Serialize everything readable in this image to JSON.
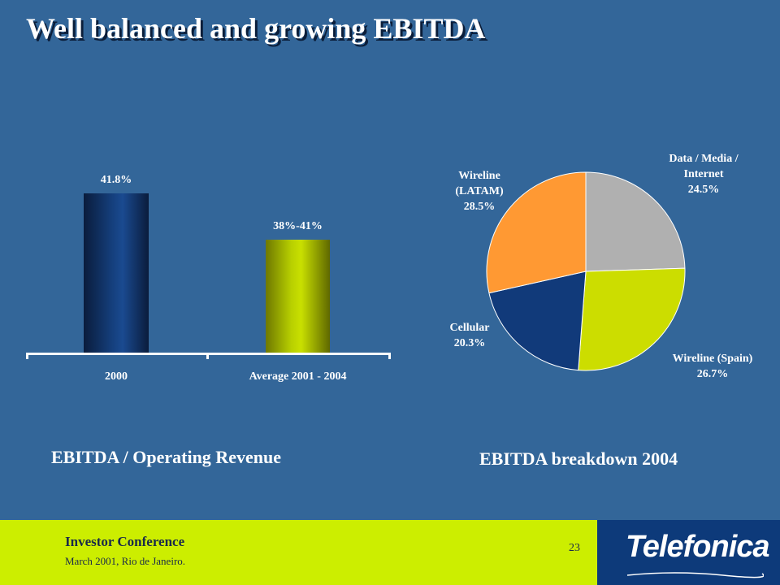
{
  "title": "Well balanced and growing EBITDA",
  "colors": {
    "background": "#336699",
    "footer_band": "#ccee00",
    "logo_panel": "#0d3a7a",
    "wireline_spain": "#ccdd00",
    "cellular": "#113a7a",
    "wireline_latam": "#ff9933",
    "data_media_internet": "#b0b0b0"
  },
  "chart_data": [
    {
      "type": "bar",
      "categories": [
        "2000",
        "Average 2001 - 2004"
      ],
      "values": [
        41.8,
        39.5
      ],
      "value_labels": [
        "41.8%",
        "38%-41%"
      ],
      "title": "EBITDA / Operating Revenue",
      "ylim": [
        0,
        60
      ],
      "grid": false
    },
    {
      "type": "pie",
      "title": "EBITDA breakdown 2004",
      "slices": [
        {
          "label_lines": [
            "Data / Media /",
            "Internet",
            "24.5%"
          ],
          "value": 24.5,
          "color": "#b0b0b0"
        },
        {
          "label_lines": [
            "Wireline (Spain)",
            "26.7%"
          ],
          "value": 26.7,
          "color": "#ccdd00"
        },
        {
          "label_lines": [
            "Cellular",
            "20.3%"
          ],
          "value": 20.3,
          "color": "#113a7a"
        },
        {
          "label_lines": [
            "Wireline",
            "(LATAM)",
            "28.5%"
          ],
          "value": 28.5,
          "color": "#ff9933"
        }
      ]
    }
  ],
  "footer": {
    "title": "Investor Conference",
    "subtitle": "March 2001, Rio de Janeiro.",
    "page_number": "23",
    "brand": "Telefonica"
  }
}
